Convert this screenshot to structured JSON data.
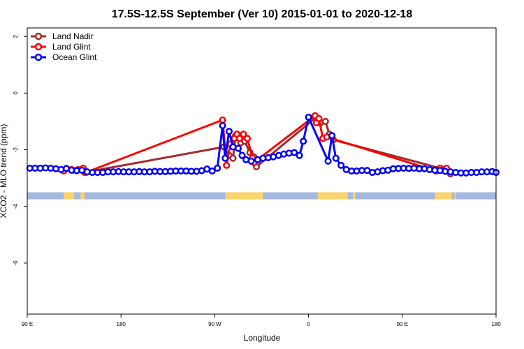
{
  "chart_data": {
    "type": "line",
    "title": "17.5S-12.5S September (Ver 10)   2015-01-01 to 2020-12-18",
    "xlabel": "Longitude",
    "ylabel": "XCO2 - MLO trend (ppm)",
    "xlim": [
      90,
      450
    ],
    "ylim": [
      -7.8,
      2.3
    ],
    "x_ticks": [
      {
        "value": 90,
        "label": "90 E"
      },
      {
        "value": 162,
        "label": "180"
      },
      {
        "value": 234,
        "label": "90 W"
      },
      {
        "value": 306,
        "label": "0"
      },
      {
        "value": 378,
        "label": "90 E"
      },
      {
        "value": 450,
        "label": "180"
      }
    ],
    "y_ticks": [
      2,
      0,
      -2,
      -4,
      -6
    ],
    "legend_position": "top-left",
    "series": [
      {
        "name": "Land Nadir",
        "color": "#a52a2a",
        "points": [
          [
            125,
            -2.72
          ],
          [
            129,
            -2.7
          ],
          [
            133,
            -2.74
          ],
          [
            134,
            -2.8
          ],
          [
            241,
            -1.9
          ],
          [
            245,
            -2.2
          ],
          [
            248,
            -2.3
          ],
          [
            250,
            -1.5
          ],
          [
            254,
            -1.75
          ],
          [
            257,
            -1.7
          ],
          [
            261,
            -2.1
          ],
          [
            264,
            -2.25
          ],
          [
            266,
            -2.6
          ],
          [
            312,
            -0.85
          ],
          [
            315,
            -1.05
          ],
          [
            319,
            -1.0
          ],
          [
            322,
            -1.45
          ],
          [
            325,
            -1.65
          ],
          [
            407,
            -2.65
          ],
          [
            410,
            -2.7
          ],
          [
            413,
            -2.75
          ],
          [
            415,
            -2.85
          ]
        ]
      },
      {
        "name": "Land Glint",
        "color": "#ff0000",
        "points": [
          [
            118,
            -2.75
          ],
          [
            124,
            -2.7
          ],
          [
            133,
            -2.65
          ],
          [
            135,
            -2.8
          ],
          [
            240,
            -0.95
          ],
          [
            243,
            -2.55
          ],
          [
            246,
            -1.8
          ],
          [
            249,
            -1.6
          ],
          [
            251,
            -1.45
          ],
          [
            253,
            -1.6
          ],
          [
            256,
            -1.45
          ],
          [
            259,
            -1.6
          ],
          [
            263,
            -2.3
          ],
          [
            264,
            -2.45
          ],
          [
            311,
            -0.8
          ],
          [
            312,
            -1.05
          ],
          [
            314,
            -0.9
          ],
          [
            317,
            -1.6
          ],
          [
            320,
            -1.55
          ],
          [
            404,
            -2.75
          ],
          [
            407,
            -2.65
          ],
          [
            412,
            -2.65
          ]
        ]
      },
      {
        "name": "Ocean Glint",
        "color": "#0000ff",
        "points": [
          [
            92,
            -2.65
          ],
          [
            96,
            -2.65
          ],
          [
            100,
            -2.65
          ],
          [
            104,
            -2.64
          ],
          [
            108,
            -2.65
          ],
          [
            112,
            -2.67
          ],
          [
            116,
            -2.7
          ],
          [
            120,
            -2.66
          ],
          [
            124,
            -2.72
          ],
          [
            128,
            -2.74
          ],
          [
            132,
            -2.72
          ],
          [
            136,
            -2.78
          ],
          [
            140,
            -2.8
          ],
          [
            144,
            -2.8
          ],
          [
            148,
            -2.8
          ],
          [
            152,
            -2.78
          ],
          [
            156,
            -2.78
          ],
          [
            160,
            -2.77
          ],
          [
            164,
            -2.78
          ],
          [
            168,
            -2.78
          ],
          [
            172,
            -2.78
          ],
          [
            176,
            -2.77
          ],
          [
            180,
            -2.78
          ],
          [
            184,
            -2.78
          ],
          [
            188,
            -2.76
          ],
          [
            192,
            -2.77
          ],
          [
            196,
            -2.77
          ],
          [
            200,
            -2.76
          ],
          [
            204,
            -2.75
          ],
          [
            208,
            -2.75
          ],
          [
            212,
            -2.75
          ],
          [
            216,
            -2.76
          ],
          [
            220,
            -2.76
          ],
          [
            224,
            -2.74
          ],
          [
            228,
            -2.68
          ],
          [
            232,
            -2.75
          ],
          [
            236,
            -2.65
          ],
          [
            240,
            -1.15
          ],
          [
            242,
            -2.3
          ],
          [
            245,
            -1.35
          ],
          [
            248,
            -1.9
          ],
          [
            252,
            -1.95
          ],
          [
            255,
            -2.2
          ],
          [
            258,
            -2.35
          ],
          [
            262,
            -2.4
          ],
          [
            267,
            -2.35
          ],
          [
            271,
            -2.3
          ],
          [
            275,
            -2.28
          ],
          [
            279,
            -2.25
          ],
          [
            283,
            -2.2
          ],
          [
            287,
            -2.15
          ],
          [
            291,
            -2.12
          ],
          [
            295,
            -2.1
          ],
          [
            299,
            -2.2
          ],
          [
            302,
            -1.7
          ],
          [
            306,
            -0.85
          ],
          [
            321,
            -2.4
          ],
          [
            324,
            -1.5
          ],
          [
            327,
            -2.3
          ],
          [
            331,
            -2.55
          ],
          [
            335,
            -2.7
          ],
          [
            339,
            -2.75
          ],
          [
            343,
            -2.75
          ],
          [
            347,
            -2.73
          ],
          [
            351,
            -2.73
          ],
          [
            355,
            -2.8
          ],
          [
            359,
            -2.78
          ],
          [
            363,
            -2.74
          ],
          [
            367,
            -2.72
          ],
          [
            371,
            -2.67
          ],
          [
            375,
            -2.66
          ],
          [
            379,
            -2.65
          ],
          [
            383,
            -2.66
          ],
          [
            387,
            -2.65
          ],
          [
            391,
            -2.67
          ],
          [
            395,
            -2.67
          ],
          [
            399,
            -2.7
          ],
          [
            403,
            -2.72
          ],
          [
            407,
            -2.73
          ],
          [
            411,
            -2.76
          ],
          [
            415,
            -2.78
          ],
          [
            419,
            -2.8
          ],
          [
            423,
            -2.82
          ],
          [
            427,
            -2.82
          ],
          [
            431,
            -2.8
          ],
          [
            435,
            -2.8
          ],
          [
            439,
            -2.78
          ],
          [
            443,
            -2.78
          ],
          [
            447,
            -2.77
          ],
          [
            450,
            -2.8
          ]
        ]
      }
    ],
    "land_mask": {
      "ocean_color": "#a3b9dd",
      "land_color": "#fcd46d",
      "y_top": -3.5,
      "y_bottom": -3.75,
      "land_ranges": [
        [
          118,
          126
        ],
        [
          131,
          134
        ],
        [
          242,
          271
        ],
        [
          313,
          336
        ],
        [
          340,
          342
        ],
        [
          403,
          416
        ],
        [
          418,
          419
        ]
      ]
    }
  }
}
